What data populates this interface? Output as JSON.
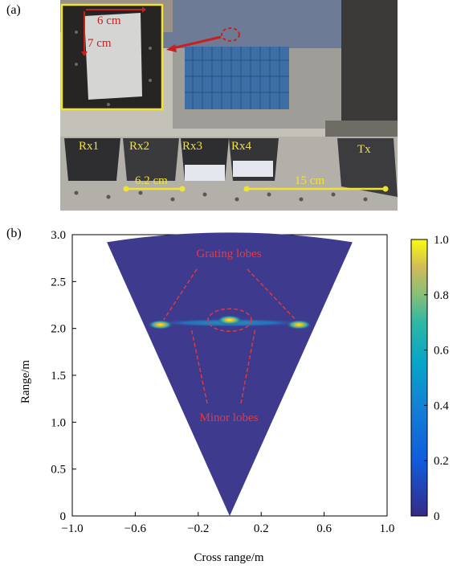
{
  "panel_a": {
    "label": "(a)",
    "inset_width": "6 cm",
    "inset_height": "7 cm",
    "receivers": [
      "Rx1",
      "Rx2",
      "Rx3",
      "Rx4"
    ],
    "transmitter": "Tx",
    "rx_spacing": "6.2 cm",
    "tx_rx_spacing": "15 cm"
  },
  "panel_b": {
    "label": "(b)",
    "annotation_grating": "Grating lobes",
    "annotation_minor": "Minor lobes"
  },
  "chart_data": {
    "type": "heatmap",
    "xlabel": "Cross range/m",
    "ylabel": "Range/m",
    "xlim": [
      -1.0,
      1.0
    ],
    "ylim": [
      0,
      3.0
    ],
    "x_ticks": [
      "−1.0",
      "−0.6",
      "−0.2",
      "0.2",
      "0.6",
      "1.0"
    ],
    "y_ticks": [
      "0",
      "0.5",
      "1.0",
      "1.5",
      "2.0",
      "2.5",
      "3.0"
    ],
    "colorbar_ticks": [
      "0",
      "0.2",
      "0.4",
      "0.6",
      "0.8",
      "1.0"
    ],
    "colorbar_range": [
      0,
      1.0
    ],
    "colormap": "parula",
    "background_color": "#3e3b8f",
    "fan_apex": [
      0.0,
      0.0
    ],
    "fan_corners": [
      [
        -0.78,
        2.92
      ],
      [
        0.78,
        2.92
      ]
    ],
    "peaks": [
      {
        "x": 0.0,
        "y": 2.09,
        "intensity": 1.0
      },
      {
        "x": -0.44,
        "y": 2.04,
        "intensity": 0.95
      },
      {
        "x": 0.44,
        "y": 2.04,
        "intensity": 0.95
      }
    ]
  }
}
